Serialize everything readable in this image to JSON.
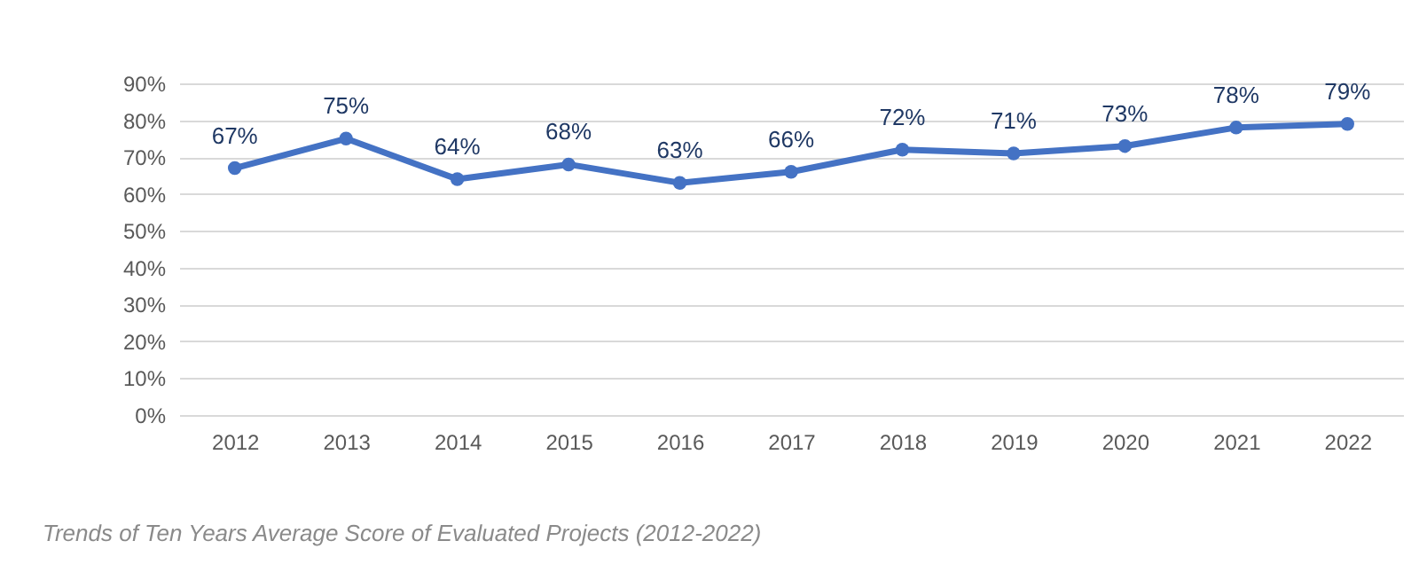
{
  "chart_data": {
    "type": "line",
    "categories": [
      "2012",
      "2013",
      "2014",
      "2015",
      "2016",
      "2017",
      "2018",
      "2019",
      "2020",
      "2021",
      "2022"
    ],
    "series": [
      {
        "color": "#4472c4",
        "values": [
          67,
          75,
          64,
          68,
          63,
          66,
          72,
          71,
          73,
          78,
          79
        ],
        "value_labels": [
          "67%",
          "75%",
          "64%",
          "68%",
          "63%",
          "66%",
          "72%",
          "71%",
          "73%",
          "78%",
          "79%"
        ]
      }
    ],
    "ylim": [
      0,
      90
    ],
    "yticks": [
      {
        "value": 0,
        "label": "0%"
      },
      {
        "value": 10,
        "label": "10%"
      },
      {
        "value": 20,
        "label": "20%"
      },
      {
        "value": 30,
        "label": "30%"
      },
      {
        "value": 40,
        "label": "40%"
      },
      {
        "value": 50,
        "label": "50%"
      },
      {
        "value": 60,
        "label": "60%"
      },
      {
        "value": 70,
        "label": "70%"
      },
      {
        "value": 80,
        "label": "80%"
      },
      {
        "value": 90,
        "label": "90%"
      }
    ],
    "grid": "y",
    "marker": "circle",
    "line_style": "solid",
    "annotations": [
      "Trends of Ten Years Average Score of Evaluated Projects (2012-2022)"
    ]
  }
}
